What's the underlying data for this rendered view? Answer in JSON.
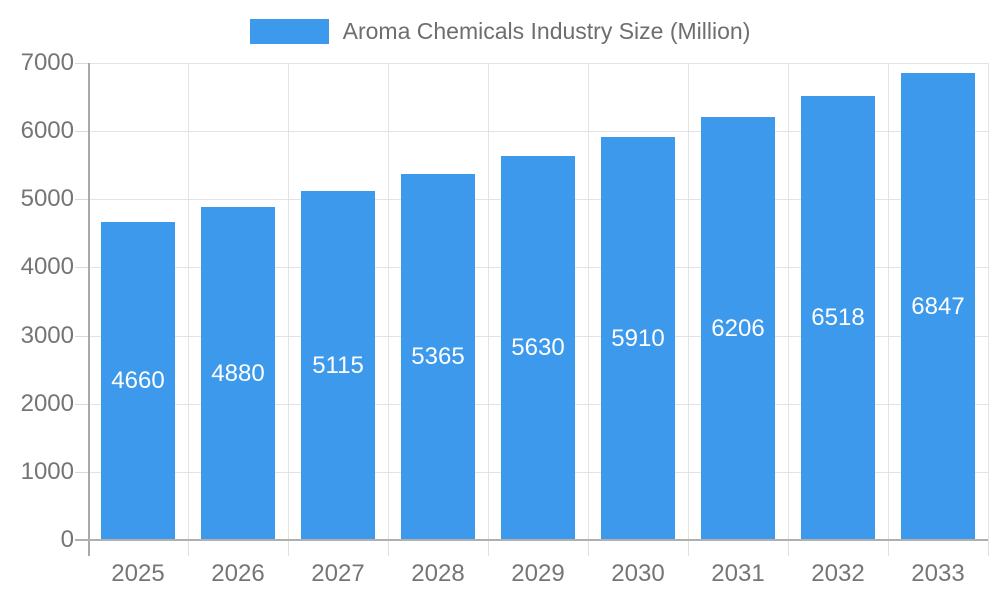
{
  "legend": {
    "label": "Aroma Chemicals Industry Size (Million)"
  },
  "chart_data": {
    "type": "bar",
    "title": "Aroma Chemicals Industry Size (Million)",
    "series_name": "Aroma Chemicals Industry Size (Million)",
    "categories": [
      "2025",
      "2026",
      "2027",
      "2028",
      "2029",
      "2030",
      "2031",
      "2032",
      "2033"
    ],
    "values": [
      4660,
      4880,
      5115,
      5365,
      5630,
      5910,
      6206,
      6518,
      6847
    ],
    "xlabel": "",
    "ylabel": "",
    "ylim": [
      0,
      7000
    ],
    "ytick_step": 1000,
    "yticks": [
      0,
      1000,
      2000,
      3000,
      4000,
      5000,
      6000,
      7000
    ],
    "grid": true,
    "legend_position": "top-center",
    "value_labels": "inside-middle"
  },
  "colors": {
    "bar": "#3C99EC",
    "bar_value_text": "#FFFFFF",
    "gridline": "#E3E3E3",
    "axis_line": "#B0B0B0",
    "axis_text": "#757575",
    "legend_text": "#6E6E6E",
    "background": "#FFFFFF"
  }
}
